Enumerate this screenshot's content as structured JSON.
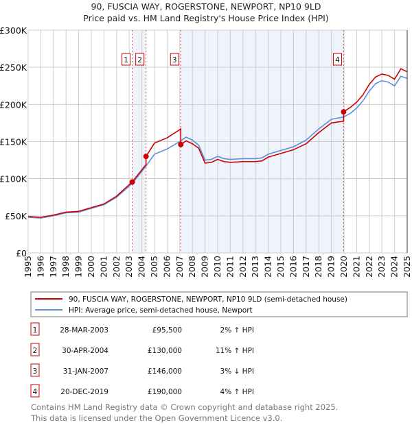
{
  "chart_data": {
    "type": "line",
    "title": "90, FUSCIA WAY, ROGERSTONE, NEWPORT, NP10 9LD",
    "subtitle": "Price paid vs. HM Land Registry's House Price Index (HPI)",
    "xlim": [
      1995,
      2025
    ],
    "ylim": [
      0,
      300000
    ],
    "yticks": [
      0,
      50000,
      100000,
      150000,
      200000,
      250000,
      300000
    ],
    "ytick_labels": [
      "£0",
      "£50K",
      "£100K",
      "£150K",
      "£200K",
      "£250K",
      "£300K"
    ],
    "xticks": [
      1995,
      1996,
      1997,
      1998,
      1999,
      2000,
      2001,
      2002,
      2003,
      2004,
      2005,
      2006,
      2007,
      2008,
      2009,
      2010,
      2011,
      2012,
      2013,
      2014,
      2015,
      2016,
      2017,
      2018,
      2019,
      2020,
      2021,
      2022,
      2023,
      2024,
      2025
    ],
    "grid": true,
    "legend_placement": "below",
    "series": [
      {
        "name": "90, FUSCIA WAY, ROGERSTONE, NEWPORT, NP10 9LD (semi-detached house)",
        "color": "#cc0000",
        "x": [
          1995,
          1996,
          1997,
          1998,
          1999,
          2000,
          2001,
          2002,
          2003,
          2003.24,
          2004,
          2004.33,
          2004.33,
          2005,
          2006,
          2007,
          2007.08,
          2007.08,
          2007.5,
          2008,
          2008.5,
          2009,
          2009.5,
          2010,
          2010.5,
          2011,
          2012,
          2013,
          2013.5,
          2014,
          2015,
          2016,
          2017,
          2018,
          2019,
          2019.97,
          2019.97,
          2020.5,
          2021,
          2021.5,
          2022,
          2022.5,
          2023,
          2023.5,
          2024,
          2024.5,
          2025
        ],
        "y": [
          49000,
          48000,
          51000,
          55000,
          56000,
          61000,
          66000,
          76500,
          92000,
          95500,
          112000,
          119000,
          130000,
          148000,
          155000,
          166000,
          167000,
          146000,
          151000,
          147000,
          141000,
          121000,
          122000,
          126000,
          123000,
          122000,
          123000,
          123000,
          124000,
          129000,
          134000,
          139000,
          147000,
          162000,
          175000,
          177500,
          190000,
          196000,
          203000,
          213000,
          227000,
          237000,
          241000,
          239000,
          234000,
          248000,
          244000
        ]
      },
      {
        "name": "HPI: Average price, semi-detached house, Newport",
        "color": "#5b8fd6",
        "x": [
          1995,
          1996,
          1997,
          1998,
          1999,
          2000,
          2001,
          2002,
          2003,
          2003.24,
          2004,
          2004.33,
          2005,
          2006,
          2007,
          2007.08,
          2007.5,
          2008,
          2008.5,
          2009,
          2009.5,
          2010,
          2010.5,
          2011,
          2012,
          2013,
          2013.5,
          2014,
          2015,
          2016,
          2017,
          2018,
          2019,
          2019.97,
          2020.5,
          2021,
          2021.5,
          2022,
          2022.5,
          2023,
          2023.5,
          2024,
          2024.5,
          2025
        ],
        "y": [
          48000,
          47000,
          50000,
          54000,
          55000,
          60000,
          65000,
          75000,
          90000,
          93600,
          110000,
          117000,
          133000,
          140000,
          150000,
          151000,
          156000,
          152000,
          145000,
          125000,
          126000,
          130000,
          127000,
          126000,
          127000,
          127000,
          128000,
          133000,
          138000,
          143000,
          152000,
          167000,
          180000,
          183000,
          188000,
          195000,
          205000,
          218000,
          228000,
          232000,
          230000,
          225000,
          238000,
          235000
        ]
      }
    ],
    "sales": [
      {
        "num": "1",
        "x": 2003.24,
        "price": 95500,
        "date": "28-MAR-2003",
        "price_label": "£95,500",
        "hpi": "2% ↑ HPI"
      },
      {
        "num": "2",
        "x": 2004.33,
        "price": 130000,
        "date": "30-APR-2004",
        "price_label": "£130,000",
        "hpi": "11% ↑ HPI"
      },
      {
        "num": "3",
        "x": 2007.08,
        "price": 146000,
        "date": "31-JAN-2007",
        "price_label": "£146,000",
        "hpi": "3% ↓ HPI"
      },
      {
        "num": "4",
        "x": 2019.97,
        "price": 190000,
        "date": "20-DEC-2019",
        "price_label": "£190,000",
        "hpi": "4% ↑ HPI"
      }
    ],
    "shaded": [
      [
        2003.24,
        2004.33
      ],
      [
        2007.08,
        2019.97
      ]
    ]
  },
  "footer": {
    "line1": "Contains HM Land Registry data © Crown copyright and database right 2025.",
    "line2": "This data is licensed under the Open Government Licence v3.0."
  }
}
